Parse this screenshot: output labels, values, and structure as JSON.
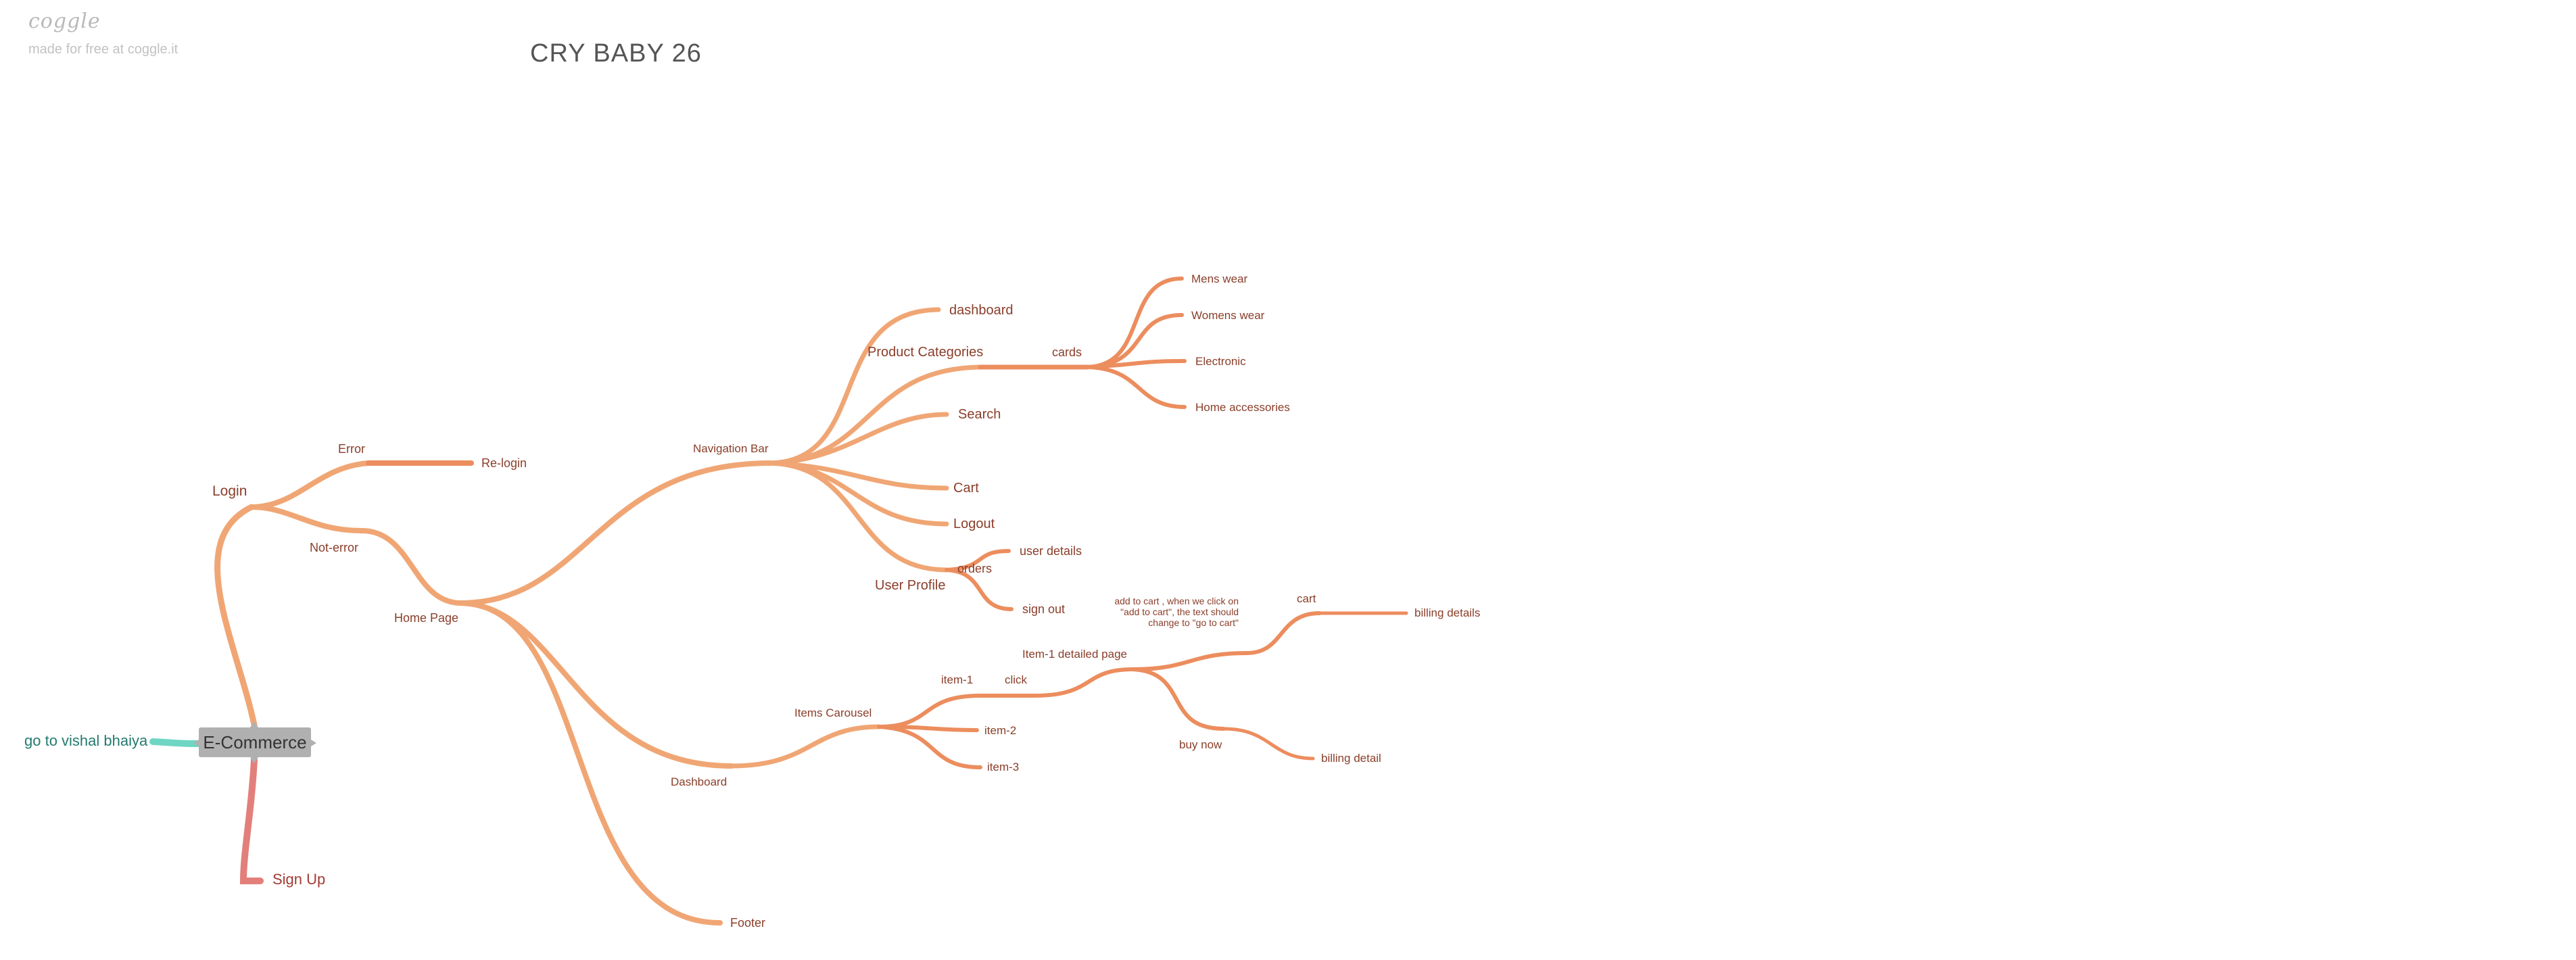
{
  "watermark": {
    "logo": "coggle",
    "text": "made for free at coggle.it"
  },
  "title": "CRY BABY 26",
  "root": {
    "label": "E-Commerce"
  },
  "nodes": {
    "login": "Login",
    "error": "Error",
    "relogin": "Re-login",
    "not_error": "Not-error",
    "home_page": "Home Page",
    "navigation_bar": "Navigation Bar",
    "dashboard_link": "dashboard",
    "product_categories": "Product Categories",
    "cards": "cards",
    "mens_wear": "Mens wear",
    "womens_wear": "Womens wear",
    "electronic": "Electronic",
    "home_accessories": "Home accessories",
    "search": "Search",
    "cart_nav": "Cart",
    "logout": "Logout",
    "user_profile": "User Profile",
    "orders": "orders",
    "user_details": "user details",
    "sign_out": "sign out",
    "dashboard": "Dashboard",
    "items_carousel": "Items Carousel",
    "item1": "item-1",
    "click": "click",
    "item1_detailed": "Item-1 detailed page",
    "add_to_cart_note": "add to cart , when we click on \"add to cart\", the text should change to \"go to cart\"",
    "cart": "cart",
    "billing_details": "billing details",
    "buy_now": "buy now",
    "billing_detail": "billing detail",
    "item2": "item-2",
    "item3": "item-3",
    "footer": "Footer",
    "go_to_vishal": "go to vishal bhaiya",
    "sign_up": "Sign Up"
  },
  "colors": {
    "branch": "#f0a674",
    "branch_deep": "#ec8d5e",
    "teal": "#6fd6c3",
    "signup": "#e37f7b",
    "label": "#8a3e2a",
    "root_fill": "#b0b0b0"
  }
}
